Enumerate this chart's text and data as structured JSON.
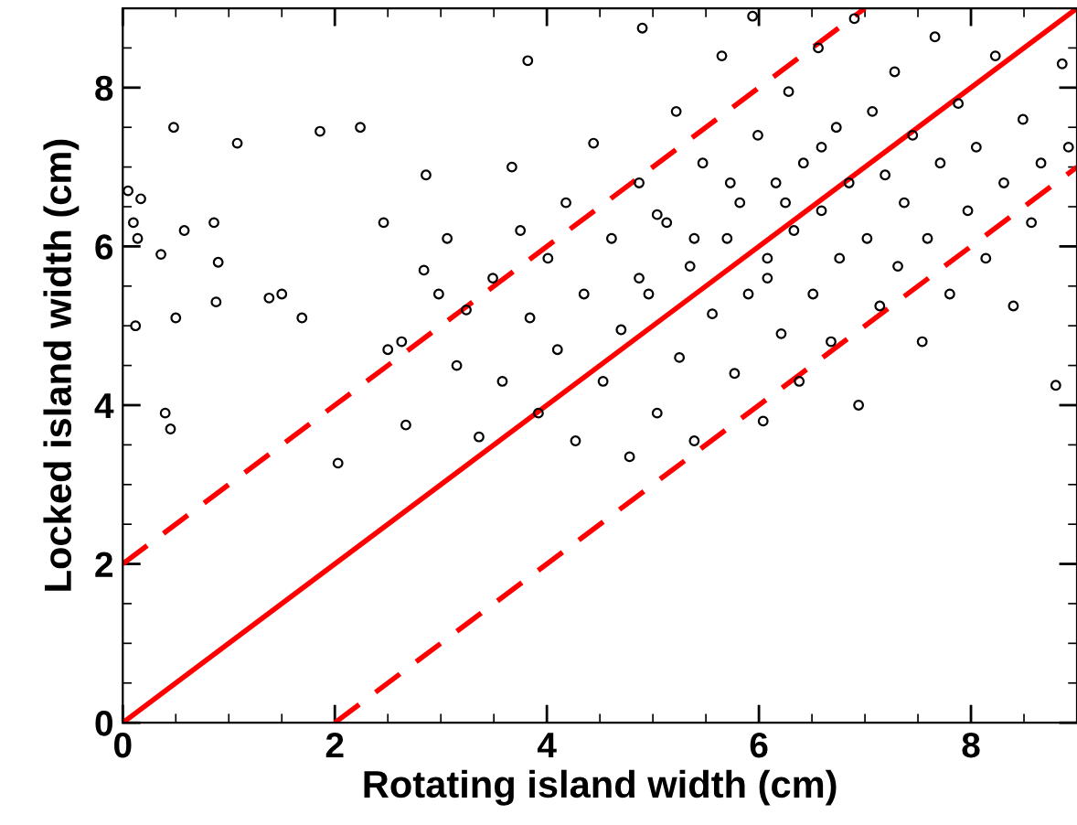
{
  "chart_data": {
    "type": "scatter",
    "xlabel": "Rotating island width (cm)",
    "ylabel": "Locked island width (cm)",
    "xlim": [
      0,
      9
    ],
    "ylim": [
      0,
      9
    ],
    "xticks": [
      0,
      2,
      4,
      6,
      8
    ],
    "yticks": [
      0,
      2,
      4,
      6,
      8
    ],
    "grid": false,
    "legend": false,
    "series": [
      {
        "marker": "circle",
        "color": "#000000",
        "x": [
          0.05,
          0.1,
          0.14,
          0.17,
          0.12,
          0.36,
          0.4,
          0.45,
          0.48,
          0.5,
          0.58,
          0.86,
          0.9,
          0.88,
          1.08,
          1.38,
          1.5,
          1.69,
          1.86,
          2.03,
          2.24,
          2.46,
          2.5,
          2.63,
          2.67,
          2.84,
          2.86,
          2.98,
          3.06,
          3.15,
          3.24,
          3.36,
          3.49,
          3.58,
          3.67,
          3.75,
          3.84,
          3.92,
          3.82,
          4.01,
          4.1,
          4.18,
          4.27,
          4.35,
          4.44,
          4.53,
          4.61,
          4.7,
          4.78,
          4.87,
          4.9,
          4.96,
          5.04,
          5.13,
          5.22,
          5.25,
          5.35,
          5.39,
          5.47,
          5.56,
          5.65,
          5.7,
          5.77,
          5.82,
          5.9,
          5.94,
          5.99,
          6.04,
          6.08,
          6.16,
          6.21,
          6.28,
          6.33,
          6.38,
          6.42,
          6.51,
          6.56,
          6.59,
          6.68,
          6.73,
          6.76,
          6.85,
          6.9,
          6.94,
          7.02,
          7.07,
          7.14,
          7.19,
          7.28,
          7.31,
          7.37,
          7.45,
          7.54,
          7.59,
          7.66,
          7.71,
          7.8,
          7.88,
          7.97,
          8.05,
          8.14,
          8.23,
          8.31,
          8.4,
          8.49,
          8.57,
          8.66,
          8.8,
          8.86,
          8.92,
          6.08,
          5.73,
          6.25,
          5.39,
          6.59,
          4.87,
          5.04
        ],
        "values": [
          6.7,
          6.3,
          6.1,
          6.6,
          5.0,
          5.9,
          3.9,
          3.7,
          7.5,
          5.1,
          6.2,
          6.3,
          5.8,
          5.3,
          7.3,
          5.35,
          5.4,
          5.1,
          7.45,
          3.27,
          7.5,
          6.3,
          4.7,
          4.8,
          3.75,
          5.7,
          6.9,
          5.4,
          6.1,
          4.5,
          5.2,
          3.6,
          5.6,
          4.3,
          7.0,
          6.2,
          5.1,
          3.9,
          8.34,
          5.85,
          4.7,
          6.55,
          3.55,
          5.4,
          7.3,
          4.3,
          6.1,
          4.95,
          3.35,
          6.8,
          8.75,
          5.4,
          3.9,
          6.3,
          7.7,
          4.6,
          5.75,
          3.55,
          7.05,
          5.15,
          8.4,
          6.1,
          4.4,
          6.55,
          5.4,
          8.9,
          7.4,
          3.8,
          5.85,
          6.8,
          4.9,
          7.95,
          6.2,
          4.3,
          7.05,
          5.4,
          8.5,
          6.45,
          4.8,
          7.5,
          5.85,
          6.8,
          8.87,
          4.0,
          6.1,
          7.7,
          5.25,
          6.9,
          8.2,
          5.75,
          6.55,
          7.4,
          4.8,
          6.1,
          8.64,
          7.05,
          5.4,
          7.8,
          6.45,
          7.25,
          5.85,
          8.4,
          6.8,
          5.25,
          7.6,
          6.3,
          7.05,
          4.25,
          8.3,
          7.25,
          5.6,
          6.8,
          6.55,
          6.1,
          7.25,
          5.6,
          6.4
        ]
      },
      {
        "type": "line",
        "color": "#ff0000",
        "line_style": "solid",
        "marker": "none",
        "x": [
          0,
          9
        ],
        "values": [
          0,
          9
        ]
      },
      {
        "type": "line",
        "color": "#ff0000",
        "line_style": "dashed",
        "marker": "none",
        "x": [
          0,
          7
        ],
        "values": [
          2,
          9
        ]
      },
      {
        "type": "line",
        "color": "#ff0000",
        "line_style": "dashed",
        "marker": "none",
        "x": [
          2,
          9
        ],
        "values": [
          0,
          7
        ]
      }
    ]
  }
}
